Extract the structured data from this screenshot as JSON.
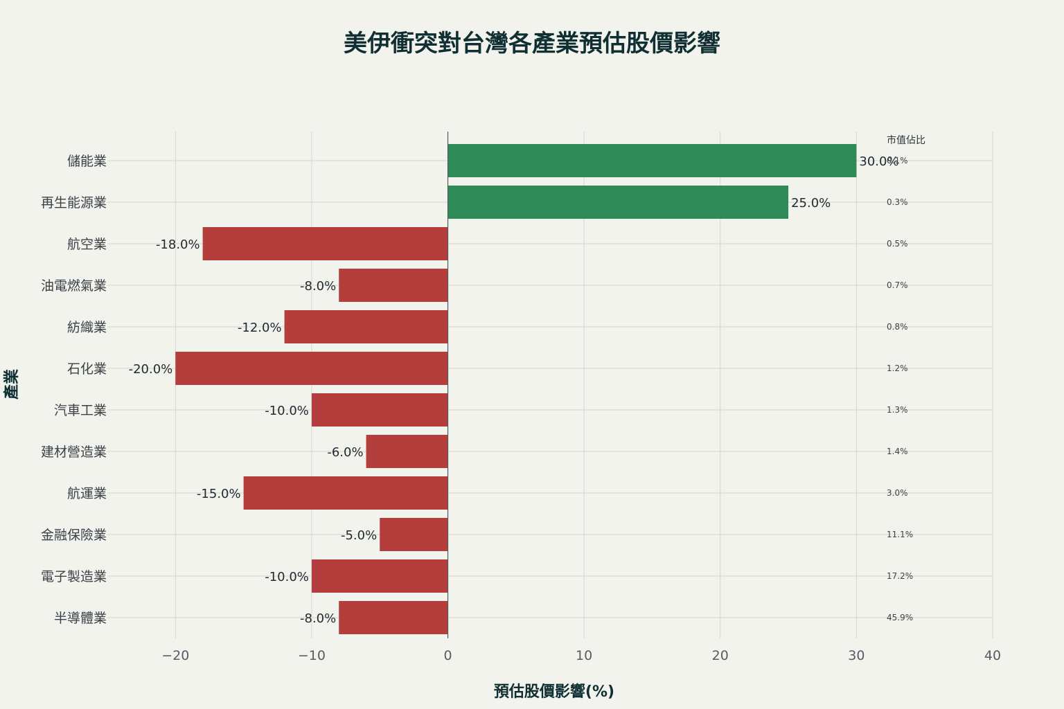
{
  "chart_data": {
    "type": "bar",
    "orientation": "horizontal",
    "title": "美伊衝突對台灣各產業預估股價影響",
    "xlabel": "預估股價影響(%)",
    "ylabel": "產業",
    "xlim": [
      -25,
      40
    ],
    "xticks": [
      -20,
      -10,
      0,
      10,
      20,
      30,
      40
    ],
    "xtick_labels": [
      "−20",
      "−10",
      "0",
      "10",
      "20",
      "30",
      "40"
    ],
    "grid": true,
    "categories": [
      "儲能業",
      "再生能源業",
      "航空業",
      "油電燃氣業",
      "紡織業",
      "石化業",
      "汽車工業",
      "建材營造業",
      "航運業",
      "金融保險業",
      "電子製造業",
      "半導體業"
    ],
    "values": [
      30.0,
      25.0,
      -18.0,
      -8.0,
      -12.0,
      -20.0,
      -10.0,
      -6.0,
      -15.0,
      -5.0,
      -10.0,
      -8.0
    ],
    "value_labels": [
      "30.0%",
      "25.0%",
      "-18.0%",
      "-8.0%",
      "-12.0%",
      "-20.0%",
      "-10.0%",
      "-6.0%",
      "-15.0%",
      "-5.0%",
      "-10.0%",
      "-8.0%"
    ],
    "colors": {
      "positive": "#2E8B57",
      "negative": "#B33E3C"
    },
    "market_share": {
      "header": "市值佔比",
      "labels": [
        "0.1%",
        "0.3%",
        "0.5%",
        "0.7%",
        "0.8%",
        "1.2%",
        "1.3%",
        "1.4%",
        "3.0%",
        "11.1%",
        "17.2%",
        "45.9%"
      ]
    }
  }
}
